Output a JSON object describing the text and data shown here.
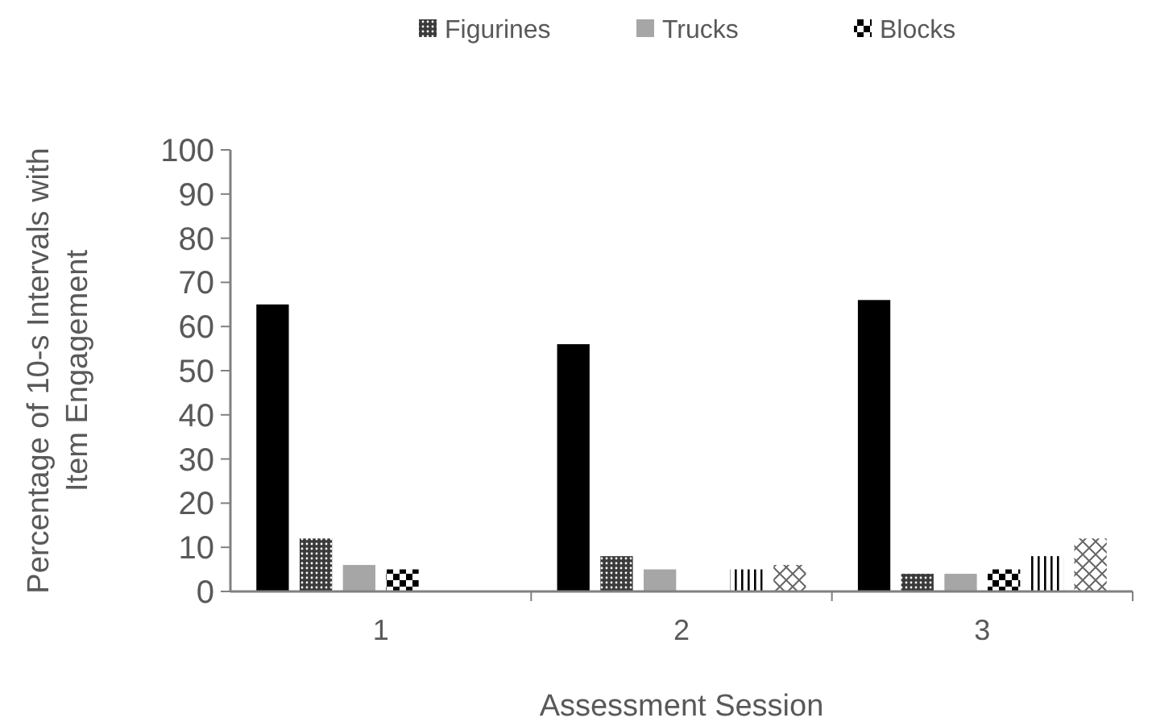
{
  "chart_data": {
    "type": "bar",
    "xlabel": "Assessment Session",
    "ylabel": "Percentage of 10-s Intervals with Item Engagement",
    "categories": [
      "1",
      "2",
      "3"
    ],
    "series": [
      {
        "color": "#000000",
        "values": [
          65,
          56,
          66
        ]
      },
      {
        "name": "Figurines",
        "color": "#3a3a3a",
        "values": [
          12,
          8,
          4
        ]
      },
      {
        "name": "Trucks",
        "color": "#a6a6a6",
        "values": [
          6,
          5,
          4
        ]
      },
      {
        "name": "Blocks",
        "color": "#000000",
        "values": [
          5,
          null,
          5
        ]
      },
      {
        "color": "#000000",
        "values": [
          null,
          5,
          8
        ]
      },
      {
        "color": "#666666",
        "values": [
          null,
          6,
          12
        ]
      }
    ],
    "ylim": [
      0,
      100
    ],
    "yticks": [
      0,
      10,
      20,
      30,
      40,
      50,
      60,
      70,
      80,
      90,
      100
    ],
    "grid": false,
    "legend": "top"
  }
}
